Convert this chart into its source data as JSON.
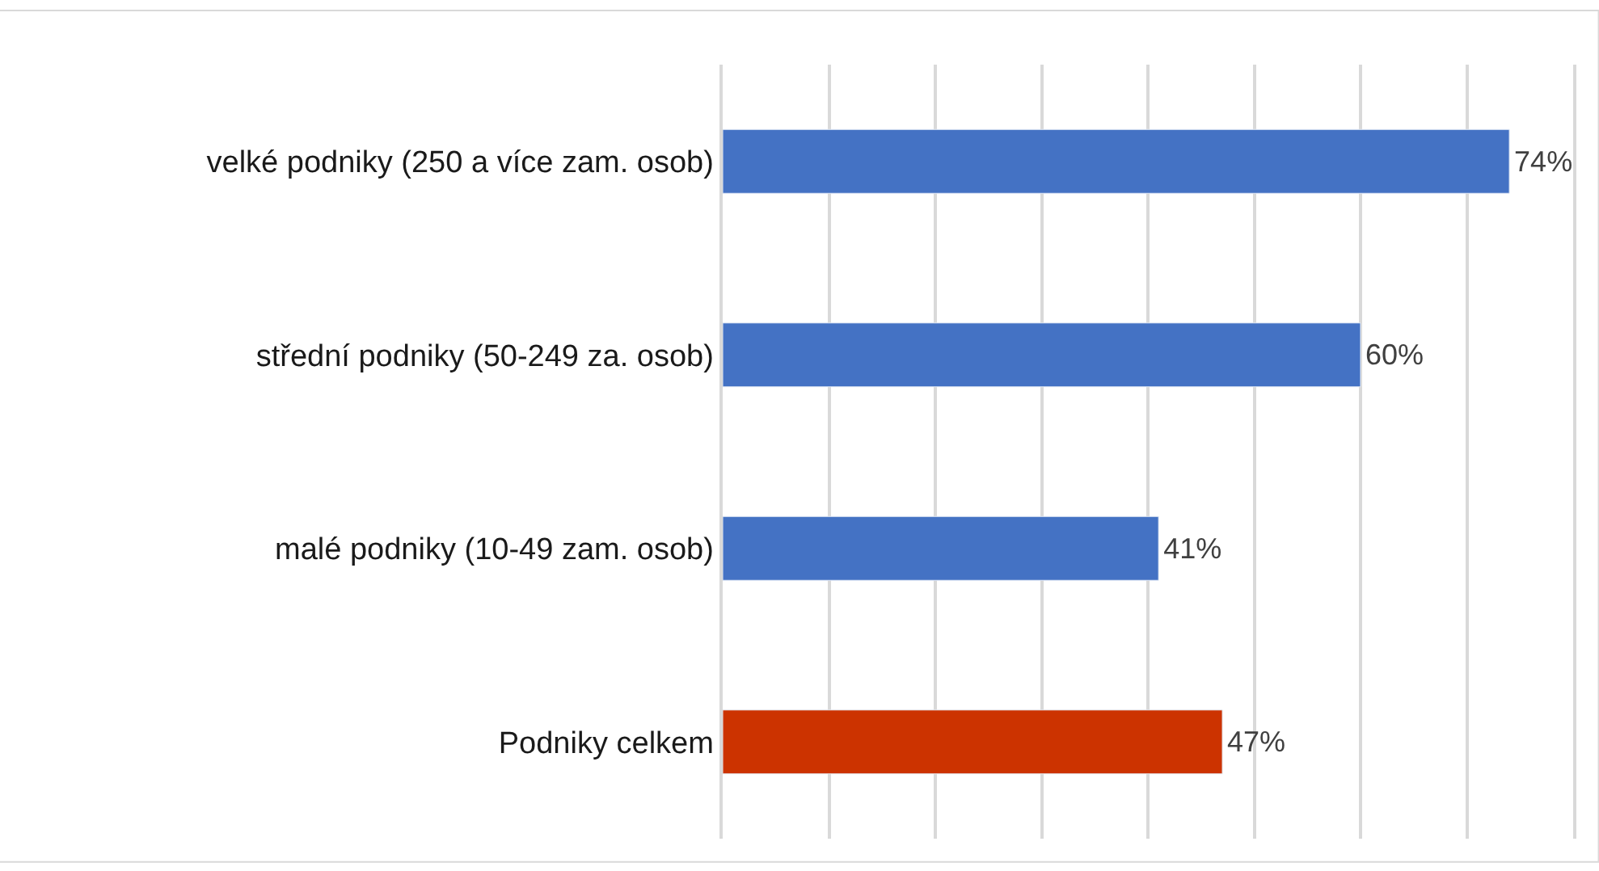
{
  "chart_data": {
    "type": "bar",
    "orientation": "horizontal",
    "categories": [
      "velké podniky (250 a více zam. osob)",
      "střední podniky (50-249 za. osob)",
      "malé podniky (10-49 zam. osob)",
      "Podniky celkem"
    ],
    "values": [
      74,
      60,
      41,
      47
    ],
    "colors": [
      "#4472c4",
      "#4472c4",
      "#4472c4",
      "#cc3300"
    ],
    "value_labels": [
      "74%",
      "60%",
      "41%",
      "47%"
    ],
    "xlim": [
      0,
      80
    ],
    "xticks": [
      {
        "value": 0,
        "label": null
      },
      {
        "value": 10,
        "label": null
      },
      {
        "value": 20,
        "label": null
      },
      {
        "value": 30,
        "label": null
      },
      {
        "value": 40,
        "label": null
      },
      {
        "value": 50,
        "label": null
      },
      {
        "value": 60,
        "label": null
      },
      {
        "value": 70,
        "label": null
      },
      {
        "value": 80,
        "label": null
      }
    ],
    "tick_labels": "y",
    "grid": "x"
  }
}
